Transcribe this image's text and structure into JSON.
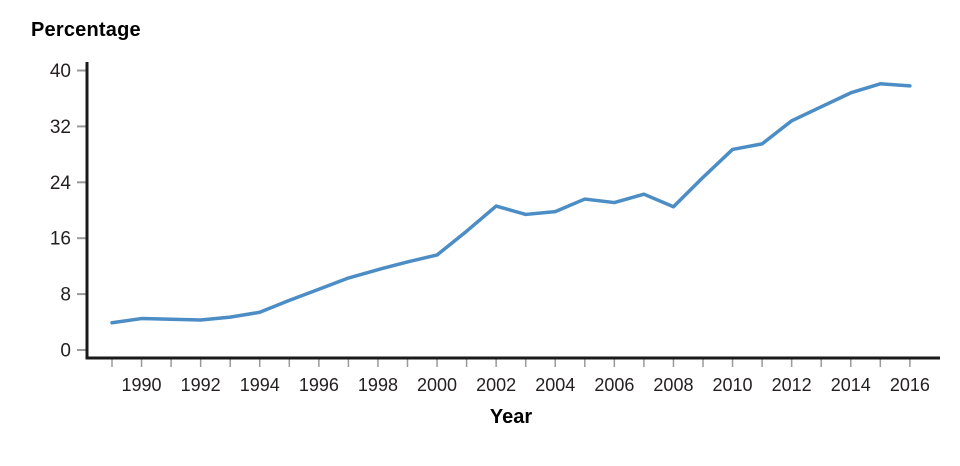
{
  "chart_data": {
    "type": "line",
    "title": "Percentage",
    "xlabel": "Year",
    "x": [
      1989,
      1990,
      1991,
      1992,
      1993,
      1994,
      1995,
      1996,
      1997,
      1998,
      1999,
      2000,
      2001,
      2002,
      2003,
      2004,
      2005,
      2006,
      2007,
      2008,
      2009,
      2010,
      2011,
      2012,
      2013,
      2014,
      2015,
      2016
    ],
    "series": [
      {
        "name": "Percentage",
        "values": [
          3.9,
          4.5,
          4.4,
          4.3,
          4.7,
          5.4,
          7.1,
          8.7,
          10.3,
          11.5,
          12.6,
          13.6,
          17.0,
          20.6,
          19.4,
          19.8,
          21.6,
          21.1,
          22.3,
          20.5,
          24.7,
          28.7,
          29.5,
          32.8,
          34.8,
          36.8,
          38.1,
          37.8
        ]
      }
    ],
    "ylim": [
      0,
      40
    ],
    "yticks": [
      0,
      8,
      16,
      24,
      32,
      40
    ],
    "xtick_labels": [
      1990,
      1992,
      1994,
      1996,
      1998,
      2000,
      2002,
      2004,
      2006,
      2008,
      2010,
      2012,
      2014,
      2016
    ],
    "minor_xticks_every_year": true,
    "grid": "off",
    "legend": "none",
    "line_color": "#4B8DC4",
    "axis_color": "#1A1A1A",
    "tick_color": "#9A9A9A",
    "text_color": "#231F20",
    "background": "#FFFFFF"
  }
}
